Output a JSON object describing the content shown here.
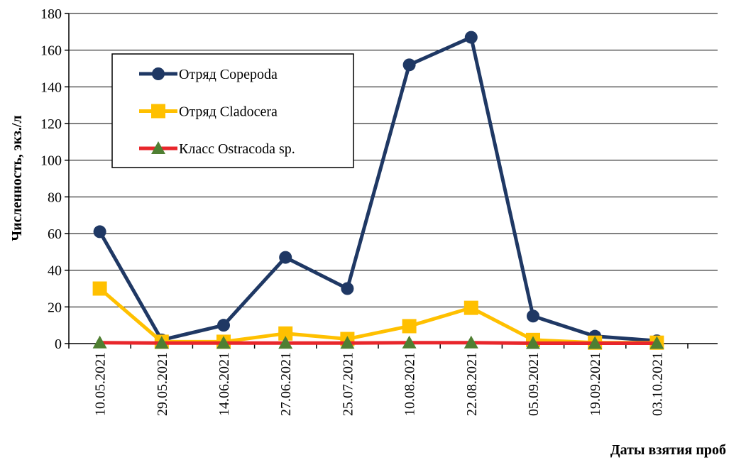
{
  "chart_data": {
    "type": "line",
    "xlabel": "Даты взятия проб",
    "ylabel": "Численность, экз./л",
    "categories": [
      "10.05.2021",
      "29.05.2021",
      "14.06.2021",
      "27.06.2021",
      "25.07.2021",
      "10.08.2021",
      "22.08.2021",
      "05.09.2021",
      "19.09.2021",
      "03.10.2021"
    ],
    "series": [
      {
        "name": "Отряд Copepoda",
        "color": "#1f3864",
        "marker": "circle",
        "marker_color": "#1f3864",
        "values": [
          61,
          2,
          10,
          47,
          30,
          152,
          167,
          15,
          4,
          1.5
        ]
      },
      {
        "name": "Отряд Cladocera",
        "color": "#ffc000",
        "marker": "square",
        "marker_color": "#ffc000",
        "values": [
          30,
          1,
          1,
          5.5,
          2.5,
          9.5,
          19.5,
          2,
          0.5,
          0.5
        ]
      },
      {
        "name": "Класс Ostracoda sp.",
        "color": "#e8262b",
        "marker": "triangle",
        "marker_color": "#4f7f32",
        "values": [
          0.5,
          0.3,
          0.3,
          0.3,
          0.3,
          0.5,
          0.5,
          0.2,
          0.2,
          0.2
        ]
      }
    ],
    "ylim": [
      0,
      180
    ],
    "yticks": [
      0,
      20,
      40,
      60,
      80,
      100,
      120,
      140,
      160,
      180
    ],
    "grid": true,
    "legend": "upper left"
  }
}
